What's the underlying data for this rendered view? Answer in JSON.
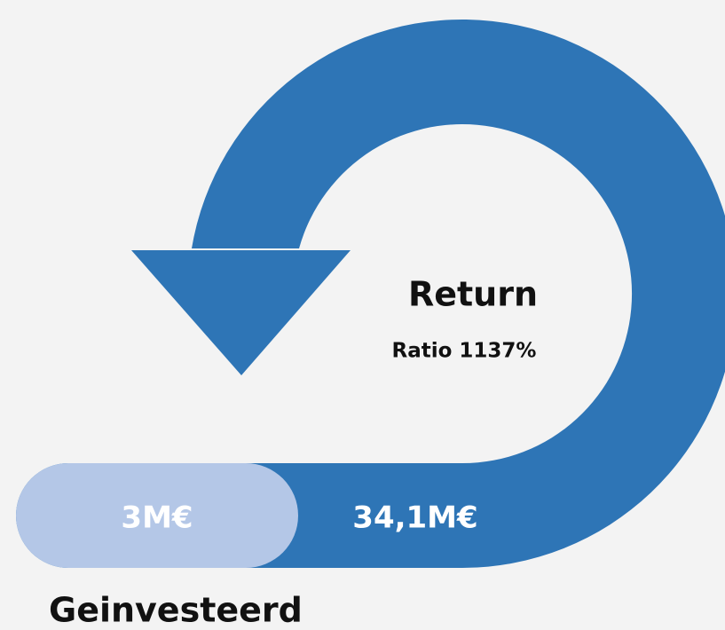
{
  "graphic": {
    "return_title": "Return",
    "return_ratio": "Ratio 1137%",
    "invested_amount": "3M€",
    "return_amount": "34,1M€",
    "invested_label": "Geinvesteerd"
  }
}
